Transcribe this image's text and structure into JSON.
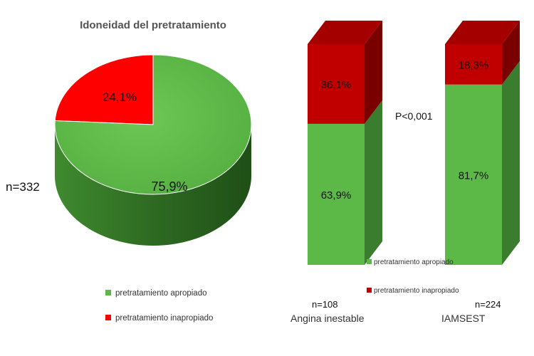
{
  "chart_data": [
    {
      "type": "pie",
      "title": "Idoneidad del pretratamiento",
      "n_label": "n=332",
      "slices": [
        {
          "label": "pretratamiento apropiado",
          "value": 75.9,
          "display": "75,9%",
          "color": "#5cb947"
        },
        {
          "label": "pretratamiento inapropiado",
          "value": 24.1,
          "display": "24,1%",
          "color": "#ff0000"
        }
      ],
      "legend": {
        "placement": "bottom",
        "items": [
          {
            "label": "pretratamiento apropiado",
            "color": "#5cb947"
          },
          {
            "label": "pretratamiento inapropiado",
            "color": "#ff0000"
          }
        ]
      }
    },
    {
      "type": "bar",
      "stacked": true,
      "percent": true,
      "categories": [
        "Angina inestable",
        "IAMSEST"
      ],
      "n_labels": [
        "n=108",
        "n=224"
      ],
      "series": [
        {
          "name": "pretratamiento apropiado",
          "color": "#5cb947",
          "values": [
            63.9,
            81.7
          ],
          "labels": [
            "63,9%",
            "81,7%"
          ]
        },
        {
          "name": "pretratamiento inapropiado",
          "color": "#c00000",
          "values": [
            36.1,
            18.3
          ],
          "labels": [
            "36,1%",
            "18,3%"
          ]
        }
      ],
      "annotation": "P<0,001",
      "legend": {
        "placement": "center",
        "items": [
          {
            "label": "pretratamiento apropiado",
            "color": "#5cb947"
          },
          {
            "label": "pretratamiento inapropiado",
            "color": "#c00000"
          }
        ]
      }
    }
  ]
}
